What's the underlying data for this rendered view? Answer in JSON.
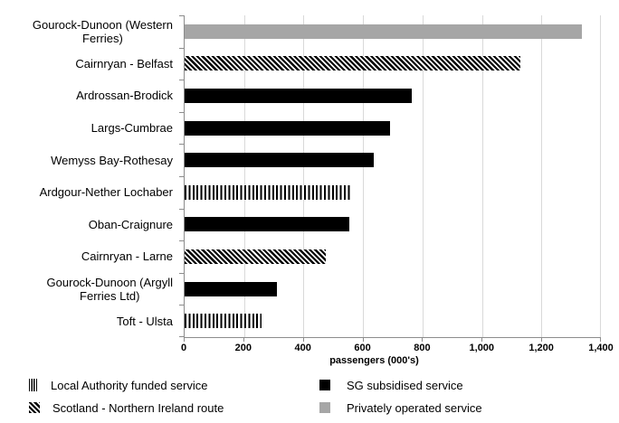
{
  "chart_data": {
    "type": "bar",
    "orientation": "horizontal",
    "title": "",
    "xlabel": "passengers (000's)",
    "ylabel": "",
    "xlim": [
      0,
      1400
    ],
    "xtick_step": 200,
    "xtick_labels": [
      "0",
      "200",
      "400",
      "600",
      "800",
      "1,000",
      "1,200",
      "1,400"
    ],
    "grid": true,
    "categories": [
      "Gourock-Dunoon (Western\nFerries)",
      "Cairnryan - Belfast",
      "Ardrossan-Brodick",
      "Largs-Cumbrae",
      "Wemyss Bay-Rothesay",
      "Ardgour-Nether Lochaber",
      "Oban-Craignure",
      "Cairnryan - Larne",
      "Gourock-Dunoon (Argyll\nFerries Ltd)",
      "Toft - Ulsta"
    ],
    "values": [
      1335,
      1130,
      765,
      690,
      635,
      560,
      555,
      475,
      310,
      260
    ],
    "series_type": [
      "privately-operated",
      "scotland-ni",
      "sg-subsidised",
      "sg-subsidised",
      "sg-subsidised",
      "local-authority",
      "sg-subsidised",
      "scotland-ni",
      "sg-subsidised",
      "local-authority"
    ],
    "legend": {
      "position": "bottom",
      "items": [
        {
          "label": "Local Authority funded service",
          "pattern": "vertical-stripes"
        },
        {
          "label": "Scotland - Northern Ireland route",
          "pattern": "diagonal-hatch"
        },
        {
          "label": "SG subsidised service",
          "pattern": "solid-black"
        },
        {
          "label": "Privately operated service",
          "pattern": "solid-gray"
        }
      ]
    },
    "colors": {
      "bar_black": "#000000",
      "bar_gray": "#a6a6a6",
      "gridline": "#d9d9d9",
      "axis": "#8c8c8c"
    }
  }
}
